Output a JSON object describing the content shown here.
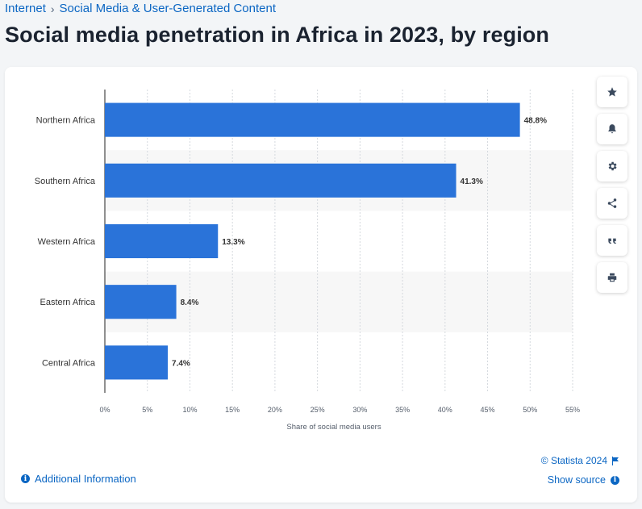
{
  "breadcrumb": {
    "items": [
      "Internet",
      "Social Media & User-Generated Content"
    ],
    "separator": "›"
  },
  "page": {
    "title": "Social media penetration in Africa in 2023, by region"
  },
  "toolbar": {
    "icons": [
      "star-icon",
      "bell-icon",
      "gear-icon",
      "share-icon",
      "quote-icon",
      "print-icon"
    ]
  },
  "footer": {
    "additional_info": "Additional Information",
    "copyright": "© Statista 2024",
    "show_source": "Show source",
    "info_glyph": "i"
  },
  "colors": {
    "bar": "#2a73d9",
    "link": "#0b66c3",
    "band": "#f7f7f7"
  },
  "chart_data": {
    "type": "bar",
    "orientation": "horizontal",
    "categories": [
      "Northern Africa",
      "Southern Africa",
      "Western Africa",
      "Eastern Africa",
      "Central Africa"
    ],
    "values": [
      48.8,
      41.3,
      13.3,
      8.4,
      7.4
    ],
    "value_labels": [
      "48.8%",
      "41.3%",
      "13.3%",
      "8.4%",
      "7.4%"
    ],
    "xlabel": "Share of social media users",
    "ylabel": "",
    "xlim": [
      0,
      55
    ],
    "ticks": [
      0,
      5,
      10,
      15,
      20,
      25,
      30,
      35,
      40,
      45,
      50,
      55
    ],
    "tick_labels": [
      "0%",
      "5%",
      "10%",
      "15%",
      "20%",
      "25%",
      "30%",
      "35%",
      "40%",
      "45%",
      "50%",
      "55%"
    ],
    "grid": true
  }
}
